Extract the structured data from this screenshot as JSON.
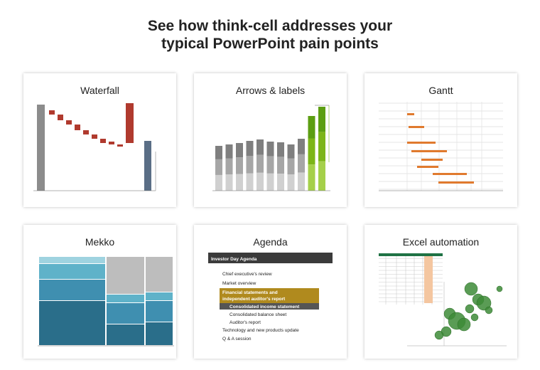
{
  "header": {
    "title_lines": [
      "See how think-cell addresses your",
      "typical PowerPoint pain points"
    ]
  },
  "cards": [
    {
      "title": "Waterfall"
    },
    {
      "title": "Arrows & labels"
    },
    {
      "title": "Gantt"
    },
    {
      "title": "Mekko"
    },
    {
      "title": "Agenda",
      "agenda_title": "Investor Day Agenda",
      "items": [
        "Chief executive's review",
        "Market overview"
      ],
      "highlight_lines": [
        "Financial statements and",
        "independent auditor's report"
      ],
      "active_sub": "Consolidated income statement",
      "subs": [
        "Consolidated balance sheet",
        "Auditor's report"
      ],
      "items_after": [
        "Technology and new products update",
        "Q & A session"
      ]
    },
    {
      "title": "Excel automation"
    }
  ]
}
